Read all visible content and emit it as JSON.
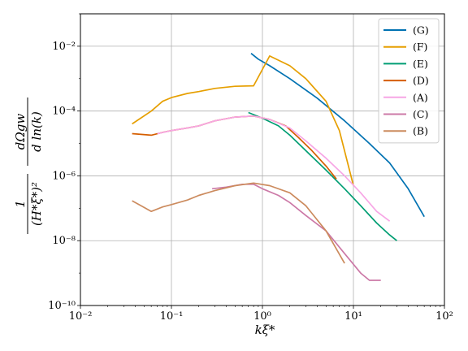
{
  "chart_data": {
    "type": "line",
    "xscale": "log",
    "yscale": "log",
    "xlim": [
      0.01,
      100
    ],
    "ylim": [
      1e-10,
      0.1
    ],
    "grid": true,
    "legend_position": "top-right",
    "xlabel": "kξ*",
    "ylabel_fraction_numerator": "1",
    "ylabel_fraction_denominator": "(H*ξ*)²",
    "ylabel_derivative_numerator": "dΩgw",
    "ylabel_derivative_denominator": "d ln(k)",
    "x_tick_labels": [
      "10⁻²",
      "10⁻¹",
      "10⁰",
      "10¹",
      "10²"
    ],
    "y_tick_labels": [
      "10⁻¹⁰",
      "10⁻⁸",
      "10⁻⁶",
      "10⁻⁴",
      "10⁻²"
    ],
    "series": [
      {
        "name": "(G)",
        "color": "#0072b2",
        "x": [
          0.75,
          0.9,
          1.2,
          2,
          4,
          8,
          15,
          25,
          40,
          60
        ],
        "y": [
          0.006,
          0.004,
          0.0025,
          0.001,
          0.00025,
          5e-05,
          1e-05,
          2.5e-06,
          4e-07,
          5.5e-08
        ]
      },
      {
        "name": "(F)",
        "color": "#e69f00",
        "x": [
          0.037,
          0.06,
          0.08,
          0.1,
          0.15,
          0.2,
          0.3,
          0.5,
          0.8,
          1.2,
          2,
          3,
          5,
          7,
          10
        ],
        "y": [
          4e-05,
          0.0001,
          0.0002,
          0.00026,
          0.00035,
          0.0004,
          0.0005,
          0.00058,
          0.0006,
          0.005,
          0.0025,
          0.001,
          0.0002,
          2.5e-05,
          5e-07
        ]
      },
      {
        "name": "(E)",
        "color": "#009e73",
        "x": [
          0.7,
          1,
          1.5,
          2,
          3,
          5,
          8,
          12,
          18,
          25,
          30
        ],
        "y": [
          9e-05,
          6e-05,
          3.5e-05,
          1.8e-05,
          6e-06,
          1.5e-06,
          4e-07,
          1.2e-07,
          3.5e-08,
          1.5e-08,
          1e-08
        ]
      },
      {
        "name": "(D)",
        "color": "#d55e00",
        "x": [
          0.037,
          0.06,
          0.08,
          0.1,
          0.15,
          0.2,
          0.3,
          0.5,
          0.8,
          1.2,
          1.8,
          2.5,
          3.5,
          5,
          6.5
        ],
        "y": [
          2e-05,
          1.8e-05,
          2.2e-05,
          2.5e-05,
          3e-05,
          3.5e-05,
          5e-05,
          6.5e-05,
          7e-05,
          5.5e-05,
          3.5e-05,
          1.5e-05,
          6e-06,
          2e-06,
          8e-07
        ]
      },
      {
        "name": "(A)",
        "color": "#f7a6e5",
        "x": [
          0.07,
          0.1,
          0.15,
          0.2,
          0.3,
          0.5,
          0.8,
          1.2,
          2,
          3,
          5,
          8,
          12,
          18,
          25
        ],
        "y": [
          2e-05,
          2.5e-05,
          3e-05,
          3.5e-05,
          5e-05,
          6.5e-05,
          7e-05,
          5.5e-05,
          3e-05,
          1.2e-05,
          3.5e-06,
          1e-06,
          3e-07,
          8e-08,
          4e-08
        ]
      },
      {
        "name": "(C)",
        "color": "#cc79a7",
        "x": [
          0.28,
          0.4,
          0.6,
          0.8,
          1,
          1.5,
          2,
          3,
          5,
          8,
          12,
          15,
          20
        ],
        "y": [
          4e-07,
          4.5e-07,
          5.5e-07,
          5.5e-07,
          4e-07,
          2.5e-07,
          1.5e-07,
          6e-08,
          2e-08,
          4e-09,
          1e-09,
          6e-10,
          6e-10
        ]
      },
      {
        "name": "(B)",
        "color": "#cc8b5e",
        "x": [
          0.037,
          0.06,
          0.08,
          0.1,
          0.15,
          0.2,
          0.3,
          0.5,
          0.8,
          1.2,
          2,
          3,
          5,
          8
        ],
        "y": [
          1.7e-07,
          8e-08,
          1.1e-07,
          1.3e-07,
          1.8e-07,
          2.5e-07,
          3.5e-07,
          5e-07,
          6e-07,
          5e-07,
          3e-07,
          1.2e-07,
          2e-08,
          2e-09
        ]
      }
    ]
  }
}
